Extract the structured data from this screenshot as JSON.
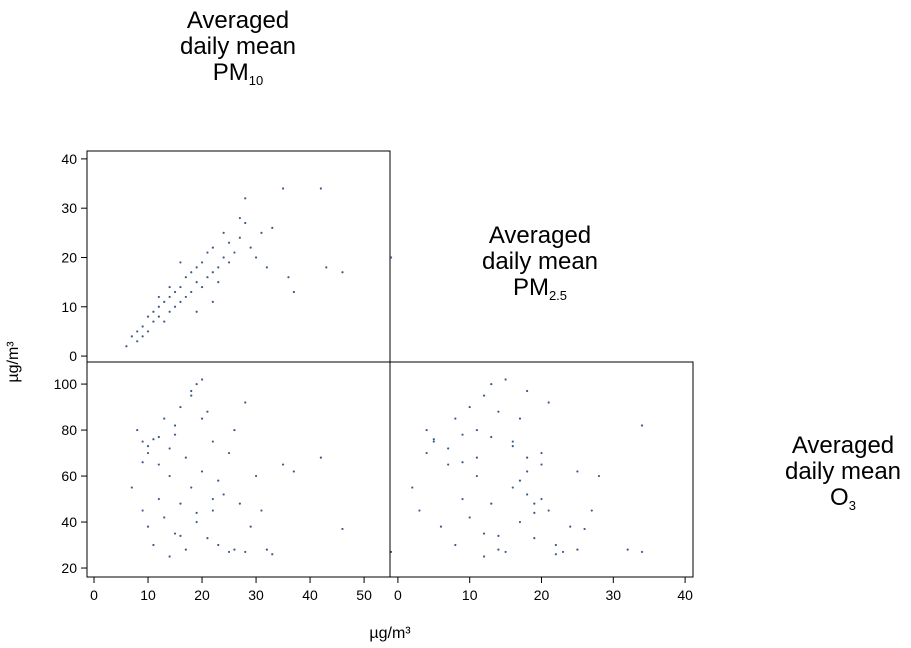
{
  "variables": [
    {
      "lines": [
        "Averaged",
        "daily mean"
      ],
      "symbol": "PM",
      "subscript": "10"
    },
    {
      "lines": [
        "Averaged",
        "daily mean"
      ],
      "symbol": "PM",
      "subscript": "2.5"
    },
    {
      "lines": [
        "Averaged",
        "daily mean"
      ],
      "symbol": "O",
      "subscript": "3"
    }
  ],
  "axis_labels": {
    "x": "µg/m³",
    "y": "µg/m³"
  },
  "chart_data": [
    {
      "type": "scatter",
      "color": "#3b5b8c",
      "x": [
        6,
        7,
        8,
        8,
        9,
        9,
        10,
        10,
        11,
        11,
        12,
        12,
        13,
        13,
        14,
        14,
        15,
        15,
        16,
        16,
        17,
        17,
        18,
        18,
        19,
        19,
        20,
        20,
        21,
        21,
        22,
        22,
        23,
        23,
        24,
        24,
        25,
        25,
        26,
        27,
        27,
        28,
        28,
        29,
        30,
        31,
        32,
        33,
        35,
        36,
        37,
        42,
        43,
        46,
        55,
        12,
        14,
        16,
        19,
        22
      ],
      "values": [
        2,
        4,
        3,
        5,
        4,
        6,
        5,
        8,
        7,
        9,
        8,
        10,
        7,
        11,
        9,
        12,
        10,
        13,
        11,
        14,
        12,
        16,
        13,
        17,
        15,
        18,
        14,
        19,
        16,
        21,
        17,
        22,
        18,
        15,
        20,
        25,
        19,
        23,
        21,
        24,
        28,
        27,
        32,
        22,
        20,
        25,
        18,
        26,
        34,
        16,
        13,
        34,
        18,
        17,
        20,
        12,
        14,
        19,
        9,
        11
      ],
      "xlim": [
        -1.3,
        54.8
      ],
      "ylim": [
        -1.2,
        41.6
      ],
      "yticks": [
        0,
        10,
        20,
        30,
        40
      ]
    },
    {
      "type": "scatter",
      "color": "#3b5b8c",
      "x": [
        7,
        8,
        9,
        9,
        10,
        10,
        11,
        11,
        12,
        12,
        13,
        13,
        14,
        14,
        15,
        15,
        16,
        16,
        17,
        17,
        18,
        18,
        19,
        19,
        20,
        20,
        21,
        21,
        22,
        22,
        23,
        23,
        24,
        25,
        25,
        26,
        27,
        28,
        28,
        29,
        30,
        31,
        32,
        33,
        35,
        37,
        42,
        46,
        55,
        10,
        12,
        15,
        18,
        20,
        22,
        14,
        16,
        19,
        9,
        26
      ],
      "values": [
        55,
        80,
        45,
        75,
        70,
        38,
        76,
        30,
        65,
        50,
        85,
        42,
        72,
        60,
        78,
        35,
        90,
        48,
        68,
        28,
        95,
        55,
        100,
        40,
        102,
        62,
        88,
        33,
        75,
        45,
        58,
        30,
        52,
        27,
        70,
        28,
        48,
        27,
        92,
        38,
        60,
        45,
        28,
        26,
        65,
        62,
        68,
        37,
        27,
        73,
        77,
        82,
        97,
        85,
        50,
        25,
        34,
        44,
        66,
        80
      ],
      "xlim": [
        -1.3,
        54.8
      ],
      "ylim": [
        16.1,
        109.6
      ],
      "xticks": [
        0,
        10,
        20,
        30,
        40,
        50
      ],
      "yticks": [
        20,
        40,
        60,
        80,
        100
      ]
    },
    {
      "type": "scatter",
      "color": "#3b5b8c",
      "x": [
        2,
        4,
        3,
        5,
        4,
        6,
        5,
        8,
        7,
        9,
        8,
        10,
        7,
        11,
        9,
        12,
        10,
        13,
        11,
        14,
        12,
        16,
        13,
        17,
        15,
        18,
        14,
        19,
        16,
        21,
        17,
        22,
        18,
        15,
        20,
        25,
        19,
        23,
        21,
        24,
        28,
        27,
        32,
        22,
        20,
        25,
        18,
        26,
        34,
        16,
        13,
        34,
        18,
        17,
        20,
        12,
        14,
        19,
        9,
        11
      ],
      "values": [
        55,
        80,
        45,
        75,
        70,
        38,
        76,
        30,
        65,
        50,
        85,
        42,
        72,
        60,
        78,
        35,
        90,
        48,
        68,
        28,
        95,
        55,
        100,
        40,
        102,
        62,
        88,
        33,
        75,
        45,
        58,
        30,
        52,
        27,
        70,
        28,
        48,
        27,
        92,
        38,
        60,
        45,
        28,
        26,
        65,
        62,
        68,
        37,
        27,
        73,
        77,
        82,
        97,
        85,
        50,
        25,
        34,
        44,
        66,
        80
      ],
      "xlim": [
        -1.1,
        41.1
      ],
      "ylim": [
        16.1,
        109.6
      ],
      "xticks": [
        0,
        10,
        20,
        30,
        40
      ]
    }
  ]
}
